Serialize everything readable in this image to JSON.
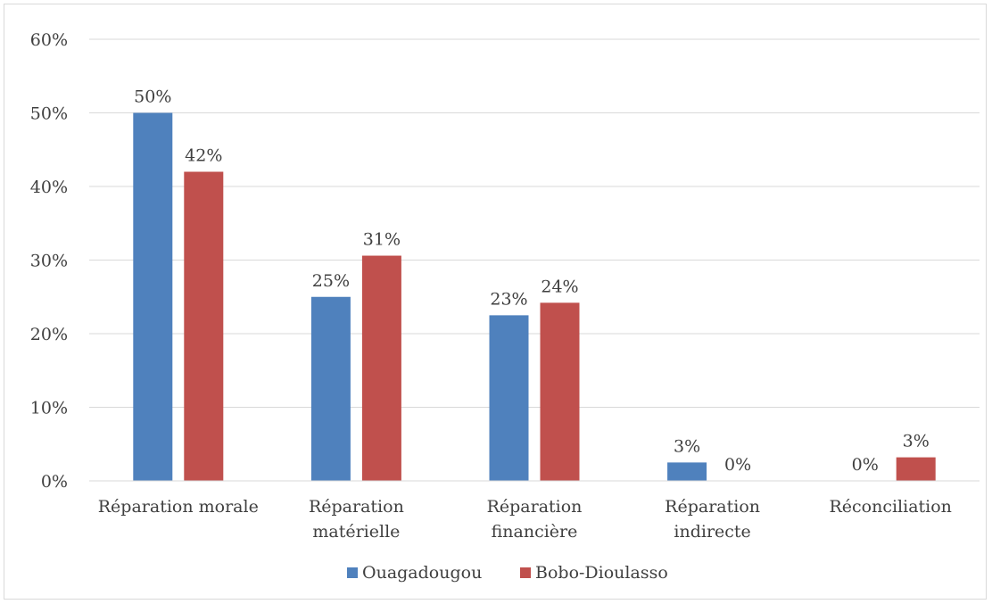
{
  "chart_data": {
    "type": "bar",
    "categories": [
      [
        "Réparation morale"
      ],
      [
        "Réparation",
        "matérielle"
      ],
      [
        "Réparation",
        "financière"
      ],
      [
        "Réparation",
        "indirecte"
      ],
      [
        "Réconciliation"
      ]
    ],
    "series": [
      {
        "name": "Ouagadougou",
        "color": "#4f81bd",
        "values": [
          50,
          25,
          22.5,
          2.5,
          0
        ],
        "labels": [
          "50%",
          "25%",
          "23%",
          "3%",
          "0%"
        ]
      },
      {
        "name": "Bobo-Dioulasso",
        "color": "#c0504d",
        "values": [
          42,
          30.6,
          24.2,
          0,
          3.2
        ],
        "labels": [
          "42%",
          "31%",
          "24%",
          "0%",
          "3%"
        ]
      }
    ],
    "yticks": [
      "0%",
      "10%",
      "20%",
      "30%",
      "40%",
      "50%",
      "60%"
    ],
    "ylim": [
      0,
      60
    ],
    "grid": true,
    "legend_position": "bottom"
  }
}
